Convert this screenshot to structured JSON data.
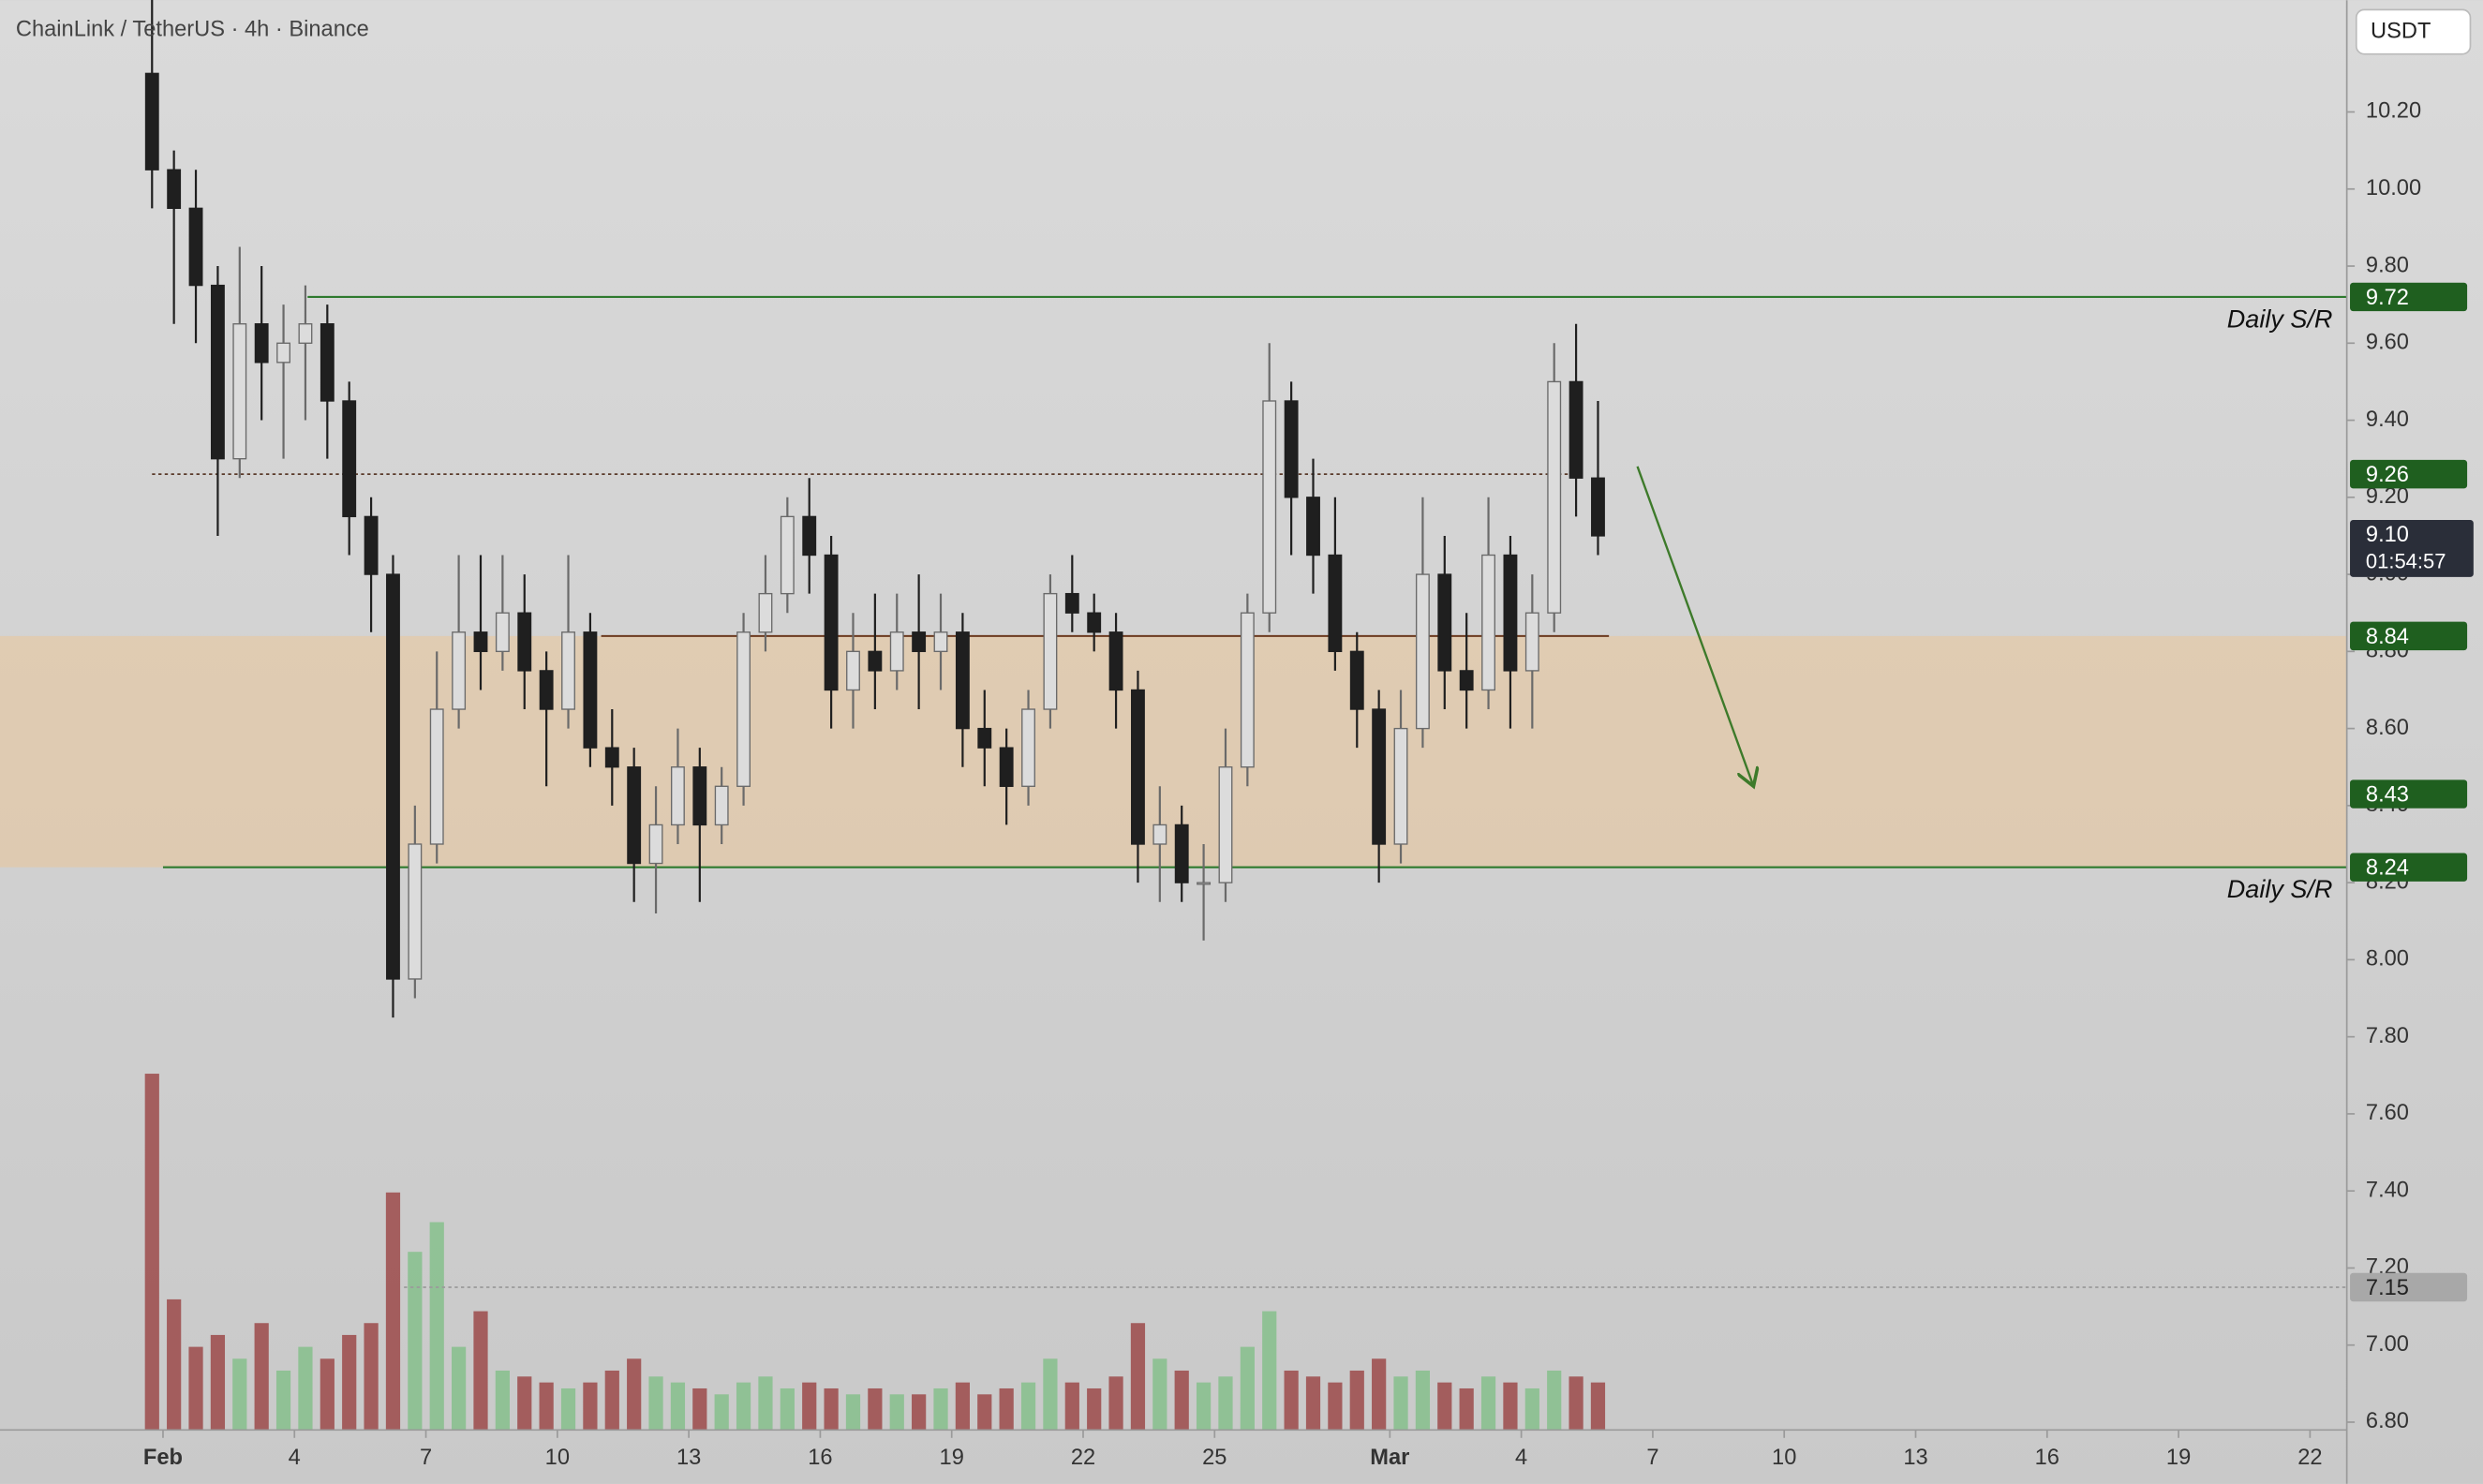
{
  "chart_data": {
    "type": "candlestick",
    "title": "ChainLink / TetherUS · 4h · Binance",
    "currency_button": "USDT",
    "xlim": [
      -3.72,
      49.84
    ],
    "ylim": [
      6.64,
      10.49
    ],
    "xticks": [
      {
        "value": 0,
        "label": "Feb"
      },
      {
        "value": 3,
        "label": "4"
      },
      {
        "value": 6,
        "label": "7"
      },
      {
        "value": 9,
        "label": "10"
      },
      {
        "value": 12,
        "label": "13"
      },
      {
        "value": 15,
        "label": "16"
      },
      {
        "value": 18,
        "label": "19"
      },
      {
        "value": 21,
        "label": "22"
      },
      {
        "value": 24,
        "label": "25"
      },
      {
        "value": 28,
        "label": "Mar"
      },
      {
        "value": 31,
        "label": "4"
      },
      {
        "value": 34,
        "label": "7"
      },
      {
        "value": 37,
        "label": "10"
      },
      {
        "value": 40,
        "label": "13"
      },
      {
        "value": 43,
        "label": "16"
      },
      {
        "value": 46,
        "label": "19"
      },
      {
        "value": 49,
        "label": "22"
      }
    ],
    "yticks": [
      {
        "value": 6.8,
        "label": "6.80"
      },
      {
        "value": 7.0,
        "label": "7.00"
      },
      {
        "value": 7.2,
        "label": "7.20"
      },
      {
        "value": 7.4,
        "label": "7.40"
      },
      {
        "value": 7.6,
        "label": "7.60"
      },
      {
        "value": 7.8,
        "label": "7.80"
      },
      {
        "value": 8.0,
        "label": "8.00"
      },
      {
        "value": 8.2,
        "label": "8.20"
      },
      {
        "value": 8.4,
        "label": "8.40"
      },
      {
        "value": 8.6,
        "label": "8.60"
      },
      {
        "value": 8.8,
        "label": "8.80"
      },
      {
        "value": 9.0,
        "label": "9.00"
      },
      {
        "value": 9.2,
        "label": "9.20"
      },
      {
        "value": 9.4,
        "label": "9.40"
      },
      {
        "value": 9.6,
        "label": "9.60"
      },
      {
        "value": 9.8,
        "label": "9.80"
      },
      {
        "value": 10.0,
        "label": "10.00"
      },
      {
        "value": 10.2,
        "label": "10.20"
      }
    ],
    "up_color": "#dcdcdc",
    "down_color": "#1f1f1f",
    "volume_up_color": "#86c08c",
    "volume_down_color": "#9c4a4a",
    "x": [
      -0.25,
      0.25,
      0.75,
      1.25,
      1.75,
      2.25,
      2.75,
      3.25,
      3.75,
      4.25,
      4.75,
      5.25,
      5.75,
      6.25,
      6.75,
      7.25,
      7.75,
      8.25,
      8.75,
      9.25,
      9.75,
      10.25,
      10.75,
      11.25,
      11.75,
      12.25,
      12.75,
      13.25,
      13.75,
      14.25,
      14.75,
      15.25,
      15.75,
      16.25,
      16.75,
      17.25,
      17.75,
      18.25,
      18.75,
      19.25,
      19.75,
      20.25,
      20.75,
      21.25,
      21.75,
      22.25,
      22.75,
      23.25,
      23.75,
      24.25,
      24.75,
      25.25,
      25.75,
      26.25,
      26.75,
      27.25,
      27.75,
      28.25,
      28.75,
      29.25,
      29.75,
      30.25,
      30.75,
      31.25,
      31.75,
      32.25,
      32.75
    ],
    "open": [
      10.3,
      10.05,
      9.95,
      9.75,
      9.3,
      9.65,
      9.55,
      9.6,
      9.65,
      9.45,
      9.15,
      9.0,
      7.95,
      8.3,
      8.65,
      8.85,
      8.8,
      8.9,
      8.75,
      8.65,
      8.85,
      8.55,
      8.5,
      8.25,
      8.35,
      8.5,
      8.35,
      8.45,
      8.85,
      8.95,
      9.15,
      9.05,
      8.7,
      8.8,
      8.75,
      8.85,
      8.8,
      8.85,
      8.6,
      8.55,
      8.45,
      8.65,
      8.95,
      8.9,
      8.85,
      8.7,
      8.3,
      8.35,
      8.2,
      8.2,
      8.5,
      8.9,
      9.45,
      9.2,
      9.05,
      8.8,
      8.65,
      8.3,
      8.6,
      9.0,
      8.75,
      8.7,
      9.05,
      8.75,
      8.9,
      9.5,
      9.25
    ],
    "high": [
      10.5,
      10.1,
      10.05,
      9.8,
      9.85,
      9.8,
      9.7,
      9.75,
      9.7,
      9.5,
      9.2,
      9.05,
      8.4,
      8.8,
      9.05,
      9.05,
      9.05,
      9.0,
      8.8,
      9.05,
      8.9,
      8.65,
      8.55,
      8.45,
      8.6,
      8.55,
      8.5,
      8.9,
      9.05,
      9.2,
      9.25,
      9.1,
      8.9,
      8.95,
      8.95,
      9.0,
      8.95,
      8.9,
      8.7,
      8.6,
      8.7,
      9.0,
      9.05,
      8.95,
      8.9,
      8.75,
      8.45,
      8.4,
      8.3,
      8.6,
      8.95,
      9.6,
      9.5,
      9.3,
      9.2,
      8.85,
      8.7,
      8.7,
      9.2,
      9.1,
      8.9,
      9.2,
      9.1,
      9.0,
      9.6,
      9.65,
      9.45
    ],
    "low": [
      9.95,
      9.65,
      9.6,
      9.1,
      9.25,
      9.4,
      9.3,
      9.4,
      9.3,
      9.05,
      8.85,
      7.85,
      7.9,
      8.25,
      8.6,
      8.7,
      8.75,
      8.65,
      8.45,
      8.6,
      8.5,
      8.4,
      8.15,
      8.12,
      8.3,
      8.15,
      8.3,
      8.4,
      8.8,
      8.9,
      8.95,
      8.6,
      8.6,
      8.65,
      8.7,
      8.65,
      8.7,
      8.5,
      8.45,
      8.35,
      8.4,
      8.6,
      8.85,
      8.8,
      8.6,
      8.2,
      8.15,
      8.15,
      8.05,
      8.15,
      8.45,
      8.85,
      9.05,
      8.95,
      8.75,
      8.55,
      8.2,
      8.25,
      8.55,
      8.65,
      8.6,
      8.65,
      8.6,
      8.6,
      8.85,
      9.15,
      9.05
    ],
    "close": [
      10.05,
      9.95,
      9.75,
      9.3,
      9.65,
      9.55,
      9.6,
      9.65,
      9.45,
      9.15,
      9.0,
      7.95,
      8.3,
      8.65,
      8.85,
      8.8,
      8.9,
      8.75,
      8.65,
      8.85,
      8.55,
      8.5,
      8.25,
      8.35,
      8.5,
      8.35,
      8.45,
      8.85,
      8.95,
      9.15,
      9.05,
      8.7,
      8.8,
      8.75,
      8.85,
      8.8,
      8.85,
      8.6,
      8.55,
      8.45,
      8.65,
      8.95,
      8.9,
      8.85,
      8.7,
      8.3,
      8.35,
      8.2,
      8.2,
      8.5,
      8.9,
      9.45,
      9.2,
      9.05,
      8.8,
      8.65,
      8.3,
      8.6,
      9.0,
      8.75,
      8.7,
      9.05,
      8.75,
      8.9,
      9.5,
      9.25,
      9.1
    ],
    "volume": [
      60,
      22,
      14,
      16,
      12,
      18,
      10,
      14,
      12,
      16,
      18,
      40,
      30,
      35,
      14,
      20,
      10,
      9,
      8,
      7,
      8,
      10,
      12,
      9,
      8,
      7,
      6,
      8,
      9,
      7,
      8,
      7,
      6,
      7,
      6,
      6,
      7,
      8,
      6,
      7,
      8,
      12,
      8,
      7,
      9,
      18,
      12,
      10,
      8,
      9,
      14,
      20,
      10,
      9,
      8,
      10,
      12,
      9,
      10,
      8,
      7,
      9,
      8,
      7,
      10,
      9,
      8
    ],
    "zone": {
      "from": 8.24,
      "to": 8.84,
      "color": "#f0c48c"
    },
    "levels": [
      {
        "value": 9.72,
        "color": "#2e7a2e",
        "style": "solid",
        "x_range": [
          3.3,
          49.84
        ],
        "note": "Daily S/R"
      },
      {
        "value": 9.26,
        "color": "#5a3a2a",
        "style": "dotted",
        "x_range": [
          -0.25,
          32.2
        ]
      },
      {
        "value": 8.84,
        "color": "#6b3a1f",
        "style": "solid",
        "x_range": [
          10.0,
          33.0
        ]
      },
      {
        "value": 8.43,
        "color": "#2e7a2e",
        "style": "none"
      },
      {
        "value": 8.24,
        "color": "#2e7a2e",
        "style": "solid",
        "x_range": [
          0.0,
          49.84
        ],
        "note": "Daily S/R"
      },
      {
        "value": 7.15,
        "color": "#9a9a9a",
        "style": "dotted",
        "x_range": [
          5.5,
          49.84
        ]
      }
    ],
    "current_price": {
      "value": 9.1,
      "label": "9.10",
      "countdown": "01:54:57"
    },
    "arrow": {
      "from": [
        33.65,
        9.28
      ],
      "to": [
        36.3,
        8.45
      ],
      "color": "#3d7a2a"
    }
  }
}
